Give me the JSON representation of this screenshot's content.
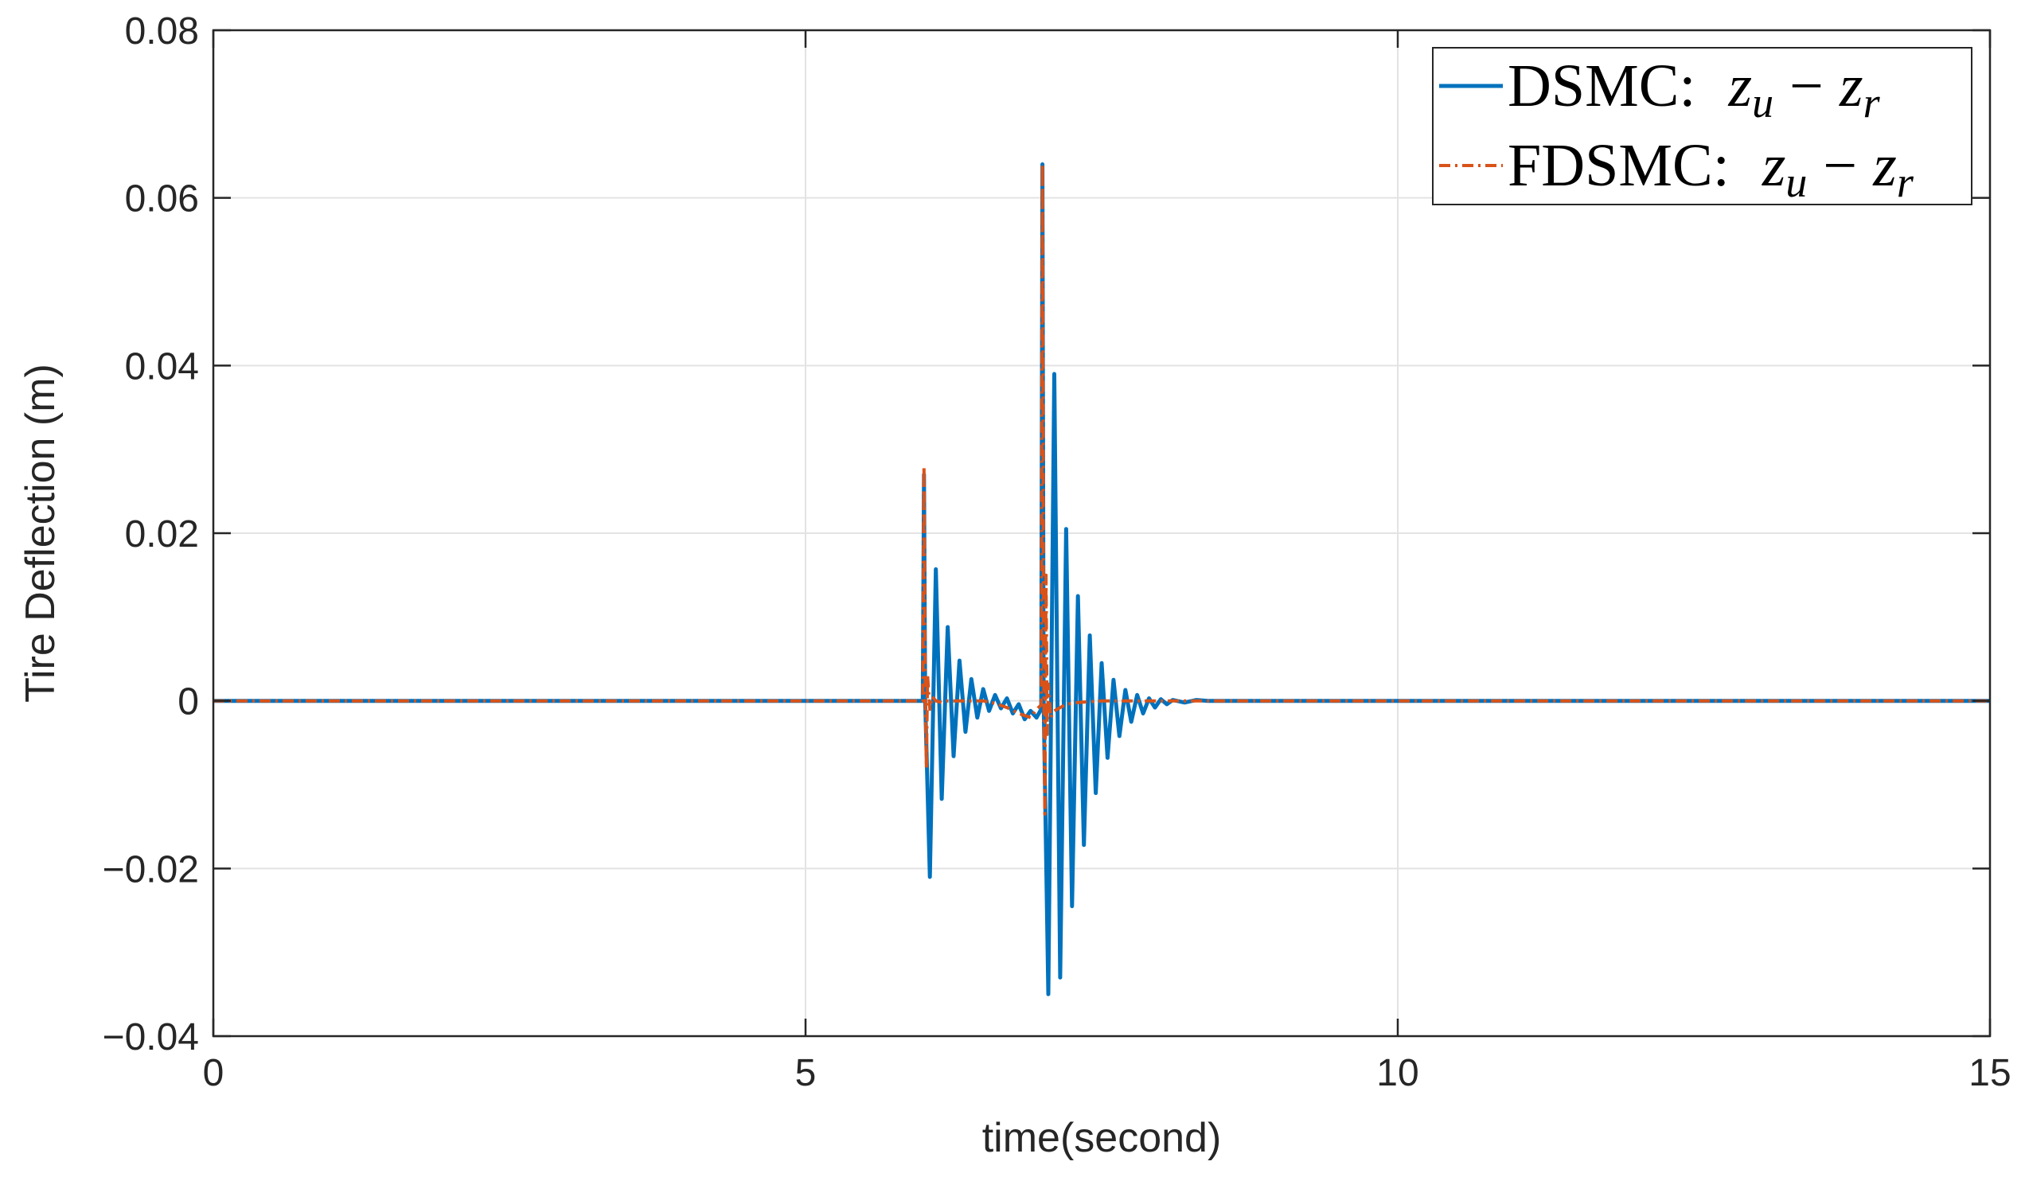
{
  "chart_data": {
    "type": "line",
    "xlabel": "time(second)",
    "ylabel": "Tire Deflection (m)",
    "xlim": [
      0,
      15
    ],
    "ylim": [
      -0.04,
      0.08
    ],
    "xticks": [
      0,
      5,
      10,
      15
    ],
    "xtick_labels": [
      "0",
      "5",
      "10",
      "15"
    ],
    "yticks": [
      -0.04,
      -0.02,
      0,
      0.02,
      0.04,
      0.06,
      0.08
    ],
    "ytick_labels": [
      "−0.04",
      "−0.02",
      "0",
      "0.02",
      "0.04",
      "0.06",
      "0.08"
    ],
    "grid": true,
    "legend_position": "top-right",
    "series": [
      {
        "name": "DSMC: z_u − z_r",
        "legend_prefix": "DSMC:",
        "color": "#0072BD",
        "style": "solid",
        "x": [
          0,
          5.99,
          6.0,
          6.01,
          6.05,
          6.1,
          6.15,
          6.2,
          6.25,
          6.3,
          6.35,
          6.4,
          6.45,
          6.5,
          6.55,
          6.6,
          6.65,
          6.7,
          6.75,
          6.8,
          6.85,
          6.9,
          6.95,
          6.99,
          7.0,
          7.01,
          7.05,
          7.1,
          7.15,
          7.2,
          7.25,
          7.3,
          7.35,
          7.4,
          7.45,
          7.5,
          7.55,
          7.6,
          7.65,
          7.7,
          7.75,
          7.8,
          7.85,
          7.9,
          7.95,
          8.0,
          8.05,
          8.1,
          8.2,
          8.3,
          8.4,
          15
        ],
        "y": [
          0,
          0,
          0.027,
          0.0,
          -0.021,
          0.0157,
          -0.0117,
          0.0088,
          -0.0066,
          0.0048,
          -0.0037,
          0.0026,
          -0.002,
          0.0014,
          -0.0012,
          0.0007,
          -0.0009,
          0.0003,
          -0.0015,
          -0.0004,
          -0.0022,
          -0.0012,
          -0.002,
          -0.001,
          0.064,
          0.0,
          -0.035,
          0.039,
          -0.033,
          0.0205,
          -0.0245,
          0.0125,
          -0.0172,
          0.0078,
          -0.011,
          0.0045,
          -0.0068,
          0.0025,
          -0.0042,
          0.0013,
          -0.0025,
          0.0007,
          -0.0015,
          0.0003,
          -0.0008,
          0.0002,
          -0.0004,
          0.0001,
          -0.0002,
          0.0001,
          0,
          0
        ]
      },
      {
        "name": "FDSMC: z_u − z_r",
        "legend_prefix": "FDSMC:",
        "color": "#D95319",
        "style": "dash-dot",
        "x": [
          0,
          5.99,
          6.0,
          6.01,
          6.02,
          6.03,
          6.05,
          6.07,
          6.1,
          6.15,
          6.2,
          6.3,
          6.4,
          6.5,
          6.6,
          6.7,
          6.8,
          6.9,
          6.95,
          6.99,
          7.0,
          7.01,
          7.02,
          7.03,
          7.04,
          7.05,
          7.07,
          7.1,
          7.15,
          7.2,
          7.3,
          7.5,
          8.0,
          15
        ],
        "y": [
          0,
          0,
          0.028,
          0.002,
          -0.008,
          0.003,
          -0.001,
          0.0005,
          0,
          -0.0002,
          0,
          0,
          0,
          0,
          -0.0003,
          -0.0008,
          -0.0015,
          -0.002,
          -0.001,
          -0.0005,
          0.064,
          0.005,
          -0.0135,
          0.015,
          -0.004,
          0.002,
          -0.002,
          -0.0012,
          -0.0008,
          -0.0004,
          -0.0002,
          0,
          0,
          0
        ]
      }
    ]
  }
}
